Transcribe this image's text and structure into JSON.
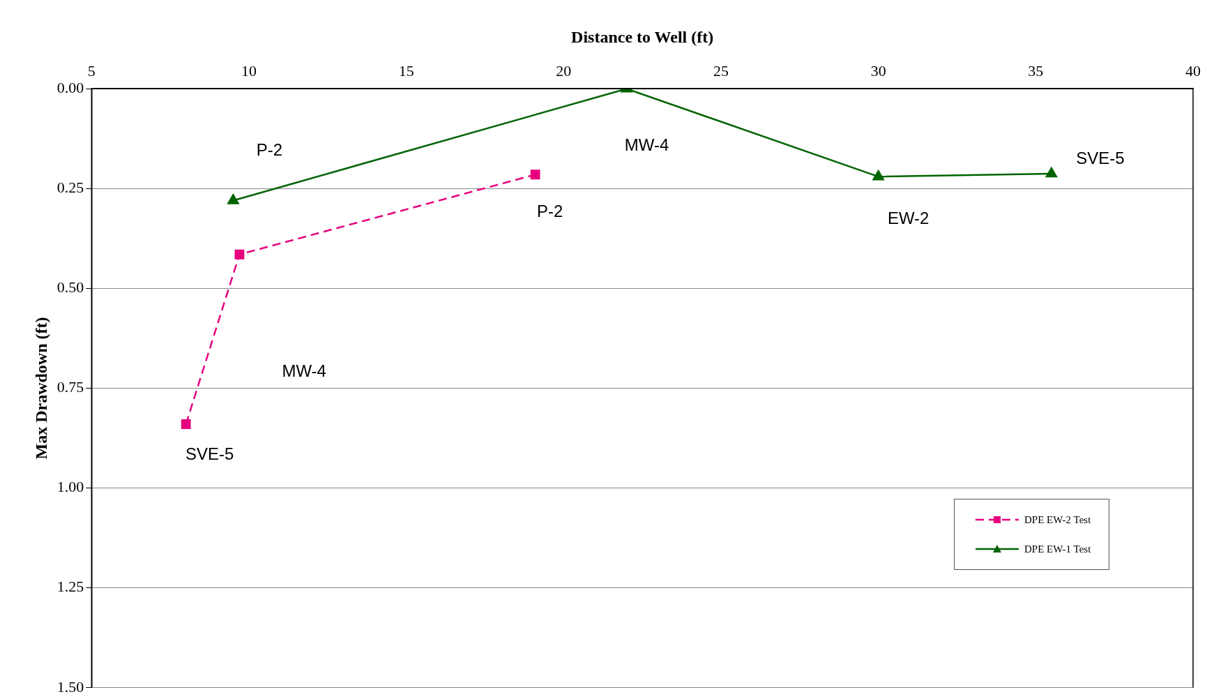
{
  "chart_data": {
    "type": "line",
    "xlabel": "Distance to Well (ft)",
    "ylabel": "Max Drawdown (ft)",
    "xlim": [
      5,
      40
    ],
    "xticks": [
      5,
      10,
      15,
      20,
      25,
      30,
      35,
      40
    ],
    "ylim": [
      1.5,
      0
    ],
    "yticks": [
      {
        "value": 0,
        "label": "0.00"
      },
      {
        "value": 0.25,
        "label": "0.25"
      },
      {
        "value": 0.5,
        "label": "0.50"
      },
      {
        "value": 0.75,
        "label": "0.75"
      },
      {
        "value": 1,
        "label": "1.00"
      },
      {
        "value": 1.25,
        "label": "1.25"
      },
      {
        "value": 1.5,
        "label": "1.50"
      }
    ],
    "grid": "y",
    "legend": "bottom right",
    "series": [
      {
        "name": "DPE EW-2 Test",
        "color": "#e6007e",
        "marker": "square",
        "line_style": "dashed",
        "x": [
          8.0,
          9.7,
          19.1
        ],
        "values": [
          0.84,
          0.415,
          0.215
        ]
      },
      {
        "name": "DPE EW-1 Test",
        "color": "#006400",
        "marker": "triangle",
        "line_style": "solid",
        "x": [
          9.5,
          22.0,
          30.0,
          35.5
        ],
        "values": [
          0.28,
          0.0,
          0.22,
          0.213
        ]
      }
    ],
    "annotations": [
      {
        "text": "P-2",
        "x": 9.5,
        "y": 0.28
      },
      {
        "text": "MW-4",
        "x": 22.0,
        "y": 0.0
      },
      {
        "text": "SVE-5",
        "x": 35.5,
        "y": 0.213
      },
      {
        "text": "P-2",
        "x": 19.1,
        "y": 0.215
      },
      {
        "text": "EW-2",
        "x": 30.0,
        "y": 0.22
      },
      "MW-4",
      {
        "text": "SVE-5",
        "x": 8.0,
        "y": 0.84
      }
    ]
  }
}
